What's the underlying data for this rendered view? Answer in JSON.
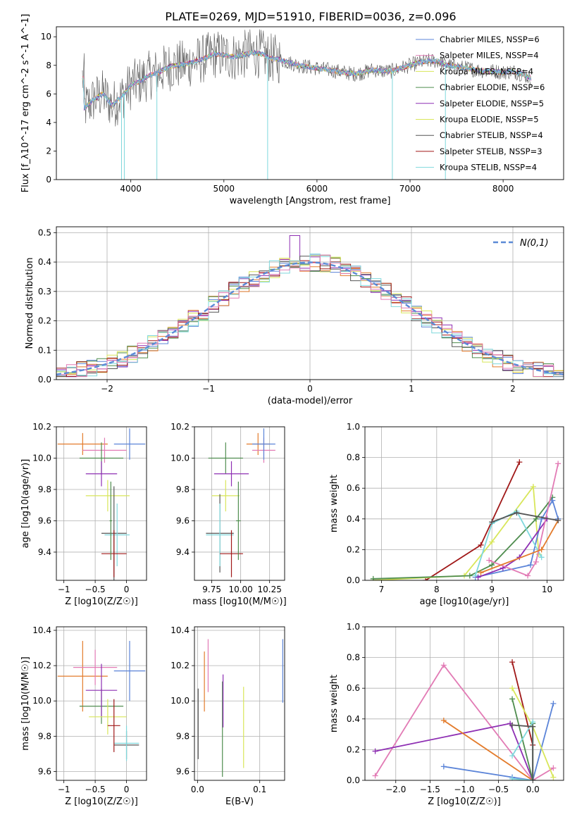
{
  "figure": {
    "title": "PLATE=0269, MJD=51910, FIBERID=0036, z=0.096"
  },
  "colors": {
    "chab_miles": "#5b84d8",
    "salp_miles": "#e37b2b",
    "krou_miles": "#4f8d4f",
    "chab_elodie": "#4f8d4f",
    "salp_elodie": "#8e2fb3",
    "krou_elodie": "#d8e65a",
    "chab_stelib": "#555555",
    "salp_stelib": "#a01818",
    "krou_stelib": "#7fd8dc",
    "pink": "#e27bb5",
    "normal": "#5b8ad6",
    "grid": "#b0b0b0"
  },
  "chart_data": [
    {
      "id": "spectrum",
      "type": "line",
      "xlabel": "wavelength [Angstrom, rest frame]",
      "ylabel": "Flux [f_λ10^-17 erg cm^-2 s^-1 A^-1]",
      "xlim": [
        3200,
        8650
      ],
      "ylim": [
        0,
        10.7
      ],
      "xticks": [
        4000,
        5000,
        6000,
        7000,
        8000
      ],
      "yticks": [
        0,
        2,
        4,
        6,
        8,
        10
      ],
      "grid": false,
      "legend_position": "top-right",
      "legend": [
        {
          "label": "Chabrier MILES, N_SSP=6",
          "color": "chab_miles"
        },
        {
          "label": "Salpeter MILES, N_SSP=4",
          "color": "pink"
        },
        {
          "label": "Kroupa MILES, N_SSP=4",
          "color": "krou_elodie"
        },
        {
          "label": "Chabrier ELODIE, N_SSP=6",
          "color": "chab_elodie"
        },
        {
          "label": "Salpeter ELODIE, N_SSP=5",
          "color": "salp_elodie"
        },
        {
          "label": "Kroupa ELODIE, N_SSP=5",
          "color": "krou_elodie"
        },
        {
          "label": "Chabrier STELIB, N_SSP=4",
          "color": "chab_stelib"
        },
        {
          "label": "Salpeter STELIB, N_SSP=3",
          "color": "salp_stelib"
        },
        {
          "label": "Kroupa STELIB, N_SSP=4",
          "color": "krou_stelib"
        }
      ],
      "continuum": [
        [
          3500,
          5.0
        ],
        [
          3600,
          5.6
        ],
        [
          3700,
          6.0
        ],
        [
          3800,
          5.2
        ],
        [
          3900,
          5.8
        ],
        [
          4000,
          6.6
        ],
        [
          4100,
          6.9
        ],
        [
          4200,
          7.3
        ],
        [
          4300,
          7.5
        ],
        [
          4400,
          7.9
        ],
        [
          4500,
          8.0
        ],
        [
          4600,
          8.1
        ],
        [
          4700,
          8.3
        ],
        [
          4800,
          8.5
        ],
        [
          4900,
          8.8
        ],
        [
          5000,
          8.7
        ],
        [
          5100,
          8.6
        ],
        [
          5200,
          8.7
        ],
        [
          5300,
          8.9
        ],
        [
          5400,
          8.8
        ],
        [
          5500,
          8.5
        ],
        [
          5600,
          8.4
        ],
        [
          5700,
          8.2
        ],
        [
          5800,
          8.0
        ],
        [
          5900,
          7.9
        ],
        [
          6000,
          7.8
        ],
        [
          6100,
          7.7
        ],
        [
          6200,
          7.6
        ],
        [
          6300,
          7.5
        ],
        [
          6400,
          7.4
        ],
        [
          6500,
          7.5
        ],
        [
          6600,
          7.7
        ],
        [
          6700,
          7.6
        ],
        [
          6800,
          7.6
        ],
        [
          6900,
          7.8
        ],
        [
          7000,
          8.0
        ],
        [
          7100,
          8.2
        ],
        [
          7200,
          8.3
        ],
        [
          7300,
          8.3
        ],
        [
          7400,
          8.0
        ],
        [
          7500,
          7.9
        ],
        [
          7600,
          7.8
        ],
        [
          7700,
          7.7
        ],
        [
          7800,
          7.6
        ],
        [
          7900,
          7.6
        ],
        [
          8000,
          7.5
        ],
        [
          8100,
          7.6
        ],
        [
          8200,
          7.4
        ],
        [
          8300,
          7.1
        ]
      ],
      "spikes": [
        3900,
        3930,
        4280,
        5470,
        6810,
        7380
      ]
    },
    {
      "id": "residuals",
      "type": "area",
      "xlabel": "(data-model)/error",
      "ylabel": "Normed distribution",
      "xlim": [
        -2.5,
        2.5
      ],
      "ylim": [
        0,
        0.52
      ],
      "xticks": [
        -2,
        -1,
        0,
        1,
        2
      ],
      "yticks": [
        0.0,
        0.1,
        0.2,
        0.3,
        0.4,
        0.5
      ],
      "grid": true,
      "legend_position": "top-right",
      "legend": [
        {
          "label": "N(0,1)",
          "color": "normal",
          "dash": true
        }
      ],
      "bin_width": 0.1,
      "bin_start": -2.5
    },
    {
      "id": "age_vs_Z",
      "type": "scatter",
      "xlabel": "Z [log10(Z/Z☉)]",
      "ylabel": "age [log10(age/yr)]",
      "xlim": [
        -1.12,
        0.32
      ],
      "ylim": [
        9.22,
        10.2
      ],
      "xticks": [
        -1.0,
        -0.5,
        0.0
      ],
      "yticks": [
        9.4,
        9.6,
        9.8,
        10.0,
        10.2
      ],
      "grid": true,
      "points": [
        {
          "x": -0.7,
          "y": 10.09,
          "xerr": 0.4,
          "yerr": 0.07,
          "color": "salp_miles"
        },
        {
          "x": -0.35,
          "y": 10.05,
          "xerr": 0.35,
          "yerr": 0.08,
          "color": "pink"
        },
        {
          "x": 0.05,
          "y": 10.09,
          "xerr": 0.25,
          "yerr": 0.1,
          "color": "chab_miles"
        },
        {
          "x": -0.4,
          "y": 10.0,
          "xerr": 0.35,
          "yerr": 0.1,
          "color": "chab_elodie"
        },
        {
          "x": -0.4,
          "y": 9.9,
          "xerr": 0.25,
          "yerr": 0.08,
          "color": "salp_elodie"
        },
        {
          "x": -0.3,
          "y": 9.76,
          "xerr": 0.35,
          "yerr": 0.1,
          "color": "krou_elodie"
        },
        {
          "x": -0.2,
          "y": 9.52,
          "xerr": 0.2,
          "yerr": 0.3,
          "color": "chab_stelib"
        },
        {
          "x": -0.15,
          "y": 9.51,
          "xerr": 0.2,
          "yerr": 0.2,
          "color": "krou_stelib"
        },
        {
          "x": -0.2,
          "y": 9.39,
          "xerr": 0.2,
          "yerr": 0.15,
          "color": "salp_stelib"
        },
        {
          "x": -0.25,
          "y": 9.6,
          "xerr": 0.02,
          "yerr": 0.25,
          "color": "chab_elodie"
        }
      ]
    },
    {
      "id": "age_vs_mass",
      "type": "scatter",
      "xlabel": "mass [log10(M/M☉)]",
      "ylabel": "",
      "xlim": [
        9.6,
        10.38
      ],
      "ylim": [
        9.22,
        10.2
      ],
      "xticks": [
        9.75,
        10.0,
        10.25
      ],
      "xticklabels": [
        "9.75",
        "10.00",
        "10.25"
      ],
      "yticks": [
        9.4,
        9.6,
        9.8,
        10.0,
        10.2
      ],
      "grid": true,
      "points": [
        {
          "x": 10.15,
          "y": 10.09,
          "xerr": 0.1,
          "yerr": 0.07,
          "color": "salp_miles"
        },
        {
          "x": 10.2,
          "y": 10.05,
          "xerr": 0.1,
          "yerr": 0.08,
          "color": "pink"
        },
        {
          "x": 10.2,
          "y": 10.09,
          "xerr": 0.1,
          "yerr": 0.1,
          "color": "chab_miles"
        },
        {
          "x": 9.87,
          "y": 10.0,
          "xerr": 0.15,
          "yerr": 0.1,
          "color": "chab_elodie"
        },
        {
          "x": 9.92,
          "y": 9.9,
          "xerr": 0.15,
          "yerr": 0.08,
          "color": "salp_elodie"
        },
        {
          "x": 9.87,
          "y": 9.76,
          "xerr": 0.12,
          "yerr": 0.1,
          "color": "krou_elodie"
        },
        {
          "x": 9.82,
          "y": 9.52,
          "xerr": 0.12,
          "yerr": 0.25,
          "color": "chab_stelib"
        },
        {
          "x": 9.82,
          "y": 9.51,
          "xerr": 0.12,
          "yerr": 0.2,
          "color": "krou_stelib"
        },
        {
          "x": 9.92,
          "y": 9.39,
          "xerr": 0.1,
          "yerr": 0.15,
          "color": "salp_stelib"
        },
        {
          "x": 9.98,
          "y": 9.6,
          "xerr": 0.02,
          "yerr": 0.25,
          "color": "chab_elodie"
        }
      ]
    },
    {
      "id": "mass_weight_vs_age",
      "type": "line",
      "xlabel": "age [log10(age/yr)]",
      "ylabel": "mass weight",
      "xlim": [
        6.7,
        10.3
      ],
      "ylim": [
        0,
        1.0
      ],
      "xticks": [
        7,
        8,
        9,
        10
      ],
      "yticks": [
        0.0,
        0.2,
        0.4,
        0.6,
        0.8,
        1.0
      ],
      "grid": true,
      "series": [
        {
          "color": "salp_stelib",
          "points": [
            [
              7.8,
              0.0
            ],
            [
              8.8,
              0.23
            ],
            [
              9.5,
              0.77
            ]
          ]
        },
        {
          "color": "krou_elodie",
          "points": [
            [
              6.85,
              0.0
            ],
            [
              8.5,
              0.03
            ],
            [
              9.0,
              0.25
            ],
            [
              9.75,
              0.61
            ],
            [
              9.85,
              0.17
            ]
          ]
        },
        {
          "color": "chab_elodie",
          "points": [
            [
              6.85,
              0.01
            ],
            [
              8.6,
              0.03
            ],
            [
              9.0,
              0.1
            ],
            [
              9.8,
              0.4
            ],
            [
              10.1,
              0.54
            ]
          ]
        },
        {
          "color": "chab_miles",
          "points": [
            [
              8.7,
              0.02
            ],
            [
              9.7,
              0.1
            ],
            [
              9.9,
              0.4
            ],
            [
              10.1,
              0.52
            ],
            [
              10.2,
              0.4
            ]
          ]
        },
        {
          "color": "krou_stelib",
          "points": [
            [
              8.7,
              0.03
            ],
            [
              9.0,
              0.37
            ],
            [
              9.45,
              0.45
            ],
            [
              9.9,
              0.15
            ]
          ]
        },
        {
          "color": "salp_elodie",
          "points": [
            [
              8.75,
              0.02
            ],
            [
              9.2,
              0.08
            ],
            [
              9.5,
              0.15
            ],
            [
              10.0,
              0.4
            ]
          ]
        },
        {
          "color": "pink",
          "points": [
            [
              8.95,
              0.13
            ],
            [
              9.65,
              0.03
            ],
            [
              9.8,
              0.12
            ],
            [
              10.2,
              0.76
            ]
          ]
        },
        {
          "color": "salp_miles",
          "points": [
            [
              8.8,
              0.05
            ],
            [
              9.9,
              0.2
            ],
            [
              10.2,
              0.39
            ]
          ]
        },
        {
          "color": "chab_stelib",
          "points": [
            [
              9.0,
              0.38
            ],
            [
              9.45,
              0.44
            ],
            [
              10.2,
              0.39
            ]
          ]
        }
      ]
    },
    {
      "id": "mass_vs_Z",
      "type": "scatter",
      "xlabel": "Z [log10(Z/Z☉)]",
      "ylabel": "mass [log10(M/M☉)]",
      "xlim": [
        -1.12,
        0.32
      ],
      "ylim": [
        9.55,
        10.42
      ],
      "xticks": [
        -1.0,
        -0.5,
        0.0
      ],
      "yticks": [
        9.6,
        9.8,
        10.0,
        10.2,
        10.4
      ],
      "grid": true,
      "points": [
        {
          "x": -0.7,
          "y": 10.14,
          "xerr": 0.4,
          "yerr": 0.2,
          "color": "salp_miles"
        },
        {
          "x": -0.5,
          "y": 10.19,
          "xerr": 0.35,
          "yerr": 0.1,
          "color": "pink"
        },
        {
          "x": 0.05,
          "y": 10.17,
          "xerr": 0.25,
          "yerr": 0.17,
          "color": "chab_miles"
        },
        {
          "x": -0.4,
          "y": 9.97,
          "xerr": 0.35,
          "yerr": 0.1,
          "color": "chab_elodie"
        },
        {
          "x": -0.4,
          "y": 10.06,
          "xerr": 0.25,
          "yerr": 0.15,
          "color": "salp_elodie"
        },
        {
          "x": -0.3,
          "y": 9.91,
          "xerr": 0.3,
          "yerr": 0.1,
          "color": "krou_elodie"
        },
        {
          "x": 0.0,
          "y": 9.75,
          "xerr": 0.2,
          "yerr": 0.08,
          "color": "chab_stelib"
        },
        {
          "x": 0.0,
          "y": 9.76,
          "xerr": 0.2,
          "yerr": 0.1,
          "color": "krou_stelib"
        },
        {
          "x": -0.2,
          "y": 9.86,
          "xerr": 0.1,
          "yerr": 0.15,
          "color": "salp_stelib"
        }
      ]
    },
    {
      "id": "mass_vs_ebv",
      "type": "scatter",
      "xlabel": "E(B-V)",
      "ylabel": "",
      "xlim": [
        -0.005,
        0.14
      ],
      "ylim": [
        9.55,
        10.42
      ],
      "xticks": [
        0.0,
        0.1
      ],
      "xticklabels": [
        "0.0",
        "0.1"
      ],
      "yticks": [
        9.6,
        9.8,
        10.0,
        10.2,
        10.4
      ],
      "grid": true,
      "points": [
        {
          "x": 0.001,
          "y": 9.87,
          "yerr": 0.2,
          "color": "chab_stelib"
        },
        {
          "x": 0.011,
          "y": 10.11,
          "yerr": 0.17,
          "color": "salp_miles"
        },
        {
          "x": 0.017,
          "y": 10.2,
          "yerr": 0.15,
          "color": "pink"
        },
        {
          "x": 0.04,
          "y": 9.84,
          "yerr": 0.27,
          "color": "chab_elodie"
        },
        {
          "x": 0.041,
          "y": 10.0,
          "yerr": 0.15,
          "color": "salp_elodie"
        },
        {
          "x": 0.074,
          "y": 9.85,
          "yerr": 0.23,
          "color": "krou_elodie"
        },
        {
          "x": 0.137,
          "y": 10.17,
          "yerr": 0.18,
          "color": "chab_miles"
        }
      ]
    },
    {
      "id": "mass_weight_vs_Z",
      "type": "line",
      "xlabel": "Z [log10(Z/Z☉)]",
      "ylabel": "mass weight",
      "xlim": [
        -2.45,
        0.45
      ],
      "ylim": [
        0,
        1.0
      ],
      "xticks": [
        -2.0,
        -1.5,
        -1.0,
        -0.5,
        0.0
      ],
      "xticklabels": [
        "-2.0",
        "-1.5",
        "-1.0",
        "-0.5",
        "0.0"
      ],
      "yticks": [
        0.0,
        0.2,
        0.4,
        0.6,
        0.8,
        1.0
      ],
      "grid": true,
      "series": [
        {
          "color": "pink",
          "points": [
            [
              -2.3,
              0.03
            ],
            [
              -1.3,
              0.75
            ],
            [
              0.0,
              0.0
            ],
            [
              0.3,
              0.08
            ]
          ]
        },
        {
          "color": "salp_elodie",
          "points": [
            [
              -2.3,
              0.19
            ],
            [
              -0.33,
              0.37
            ],
            [
              0.0,
              0.0
            ]
          ]
        },
        {
          "color": "salp_miles",
          "points": [
            [
              -1.3,
              0.39
            ],
            [
              0.0,
              0.0
            ]
          ]
        },
        {
          "color": "chab_miles",
          "points": [
            [
              -1.3,
              0.09
            ],
            [
              -0.3,
              0.02
            ],
            [
              0.0,
              0.0
            ],
            [
              0.3,
              0.5
            ]
          ]
        },
        {
          "color": "salp_stelib",
          "points": [
            [
              -0.3,
              0.77
            ],
            [
              0.0,
              0.23
            ],
            [
              0.0,
              0.0
            ]
          ]
        },
        {
          "color": "krou_elodie",
          "points": [
            [
              -0.3,
              0.6
            ],
            [
              0.0,
              0.35
            ],
            [
              0.3,
              0.02
            ]
          ]
        },
        {
          "color": "chab_elodie",
          "points": [
            [
              -0.3,
              0.53
            ],
            [
              0.0,
              0.0
            ],
            [
              0.0,
              0.37
            ]
          ]
        },
        {
          "color": "krou_stelib",
          "points": [
            [
              -0.3,
              0.16
            ],
            [
              0.0,
              0.38
            ],
            [
              0.0,
              0.0
            ],
            [
              -0.3,
              0.01
            ]
          ]
        },
        {
          "color": "chab_stelib",
          "points": [
            [
              -0.3,
              0.36
            ],
            [
              0.0,
              0.35
            ],
            [
              0.0,
              0.0
            ]
          ]
        }
      ]
    }
  ]
}
